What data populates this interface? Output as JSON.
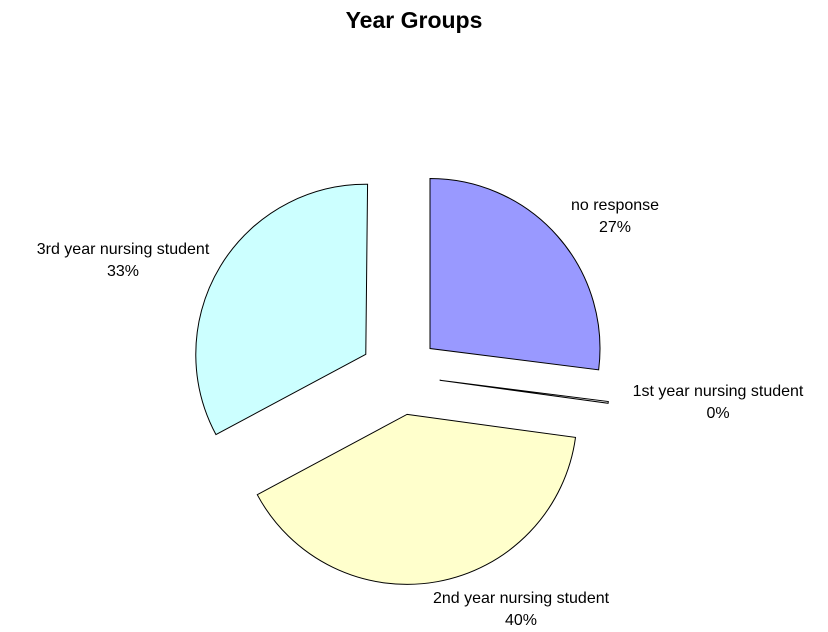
{
  "chart_data": {
    "type": "pie",
    "title": "Year Groups",
    "exploded": true,
    "slices": [
      {
        "label": "no response",
        "value": 27,
        "value_label": "27%",
        "color": "#9999ff"
      },
      {
        "label": "1st year nursing student",
        "value": 0,
        "value_label": "0%",
        "color": "#ffffff"
      },
      {
        "label": "2nd year nursing student",
        "value": 40,
        "value_label": "40%",
        "color": "#ffffcc"
      },
      {
        "label": "3rd year nursing student",
        "value": 33,
        "value_label": "33%",
        "color": "#ccffff"
      }
    ]
  }
}
